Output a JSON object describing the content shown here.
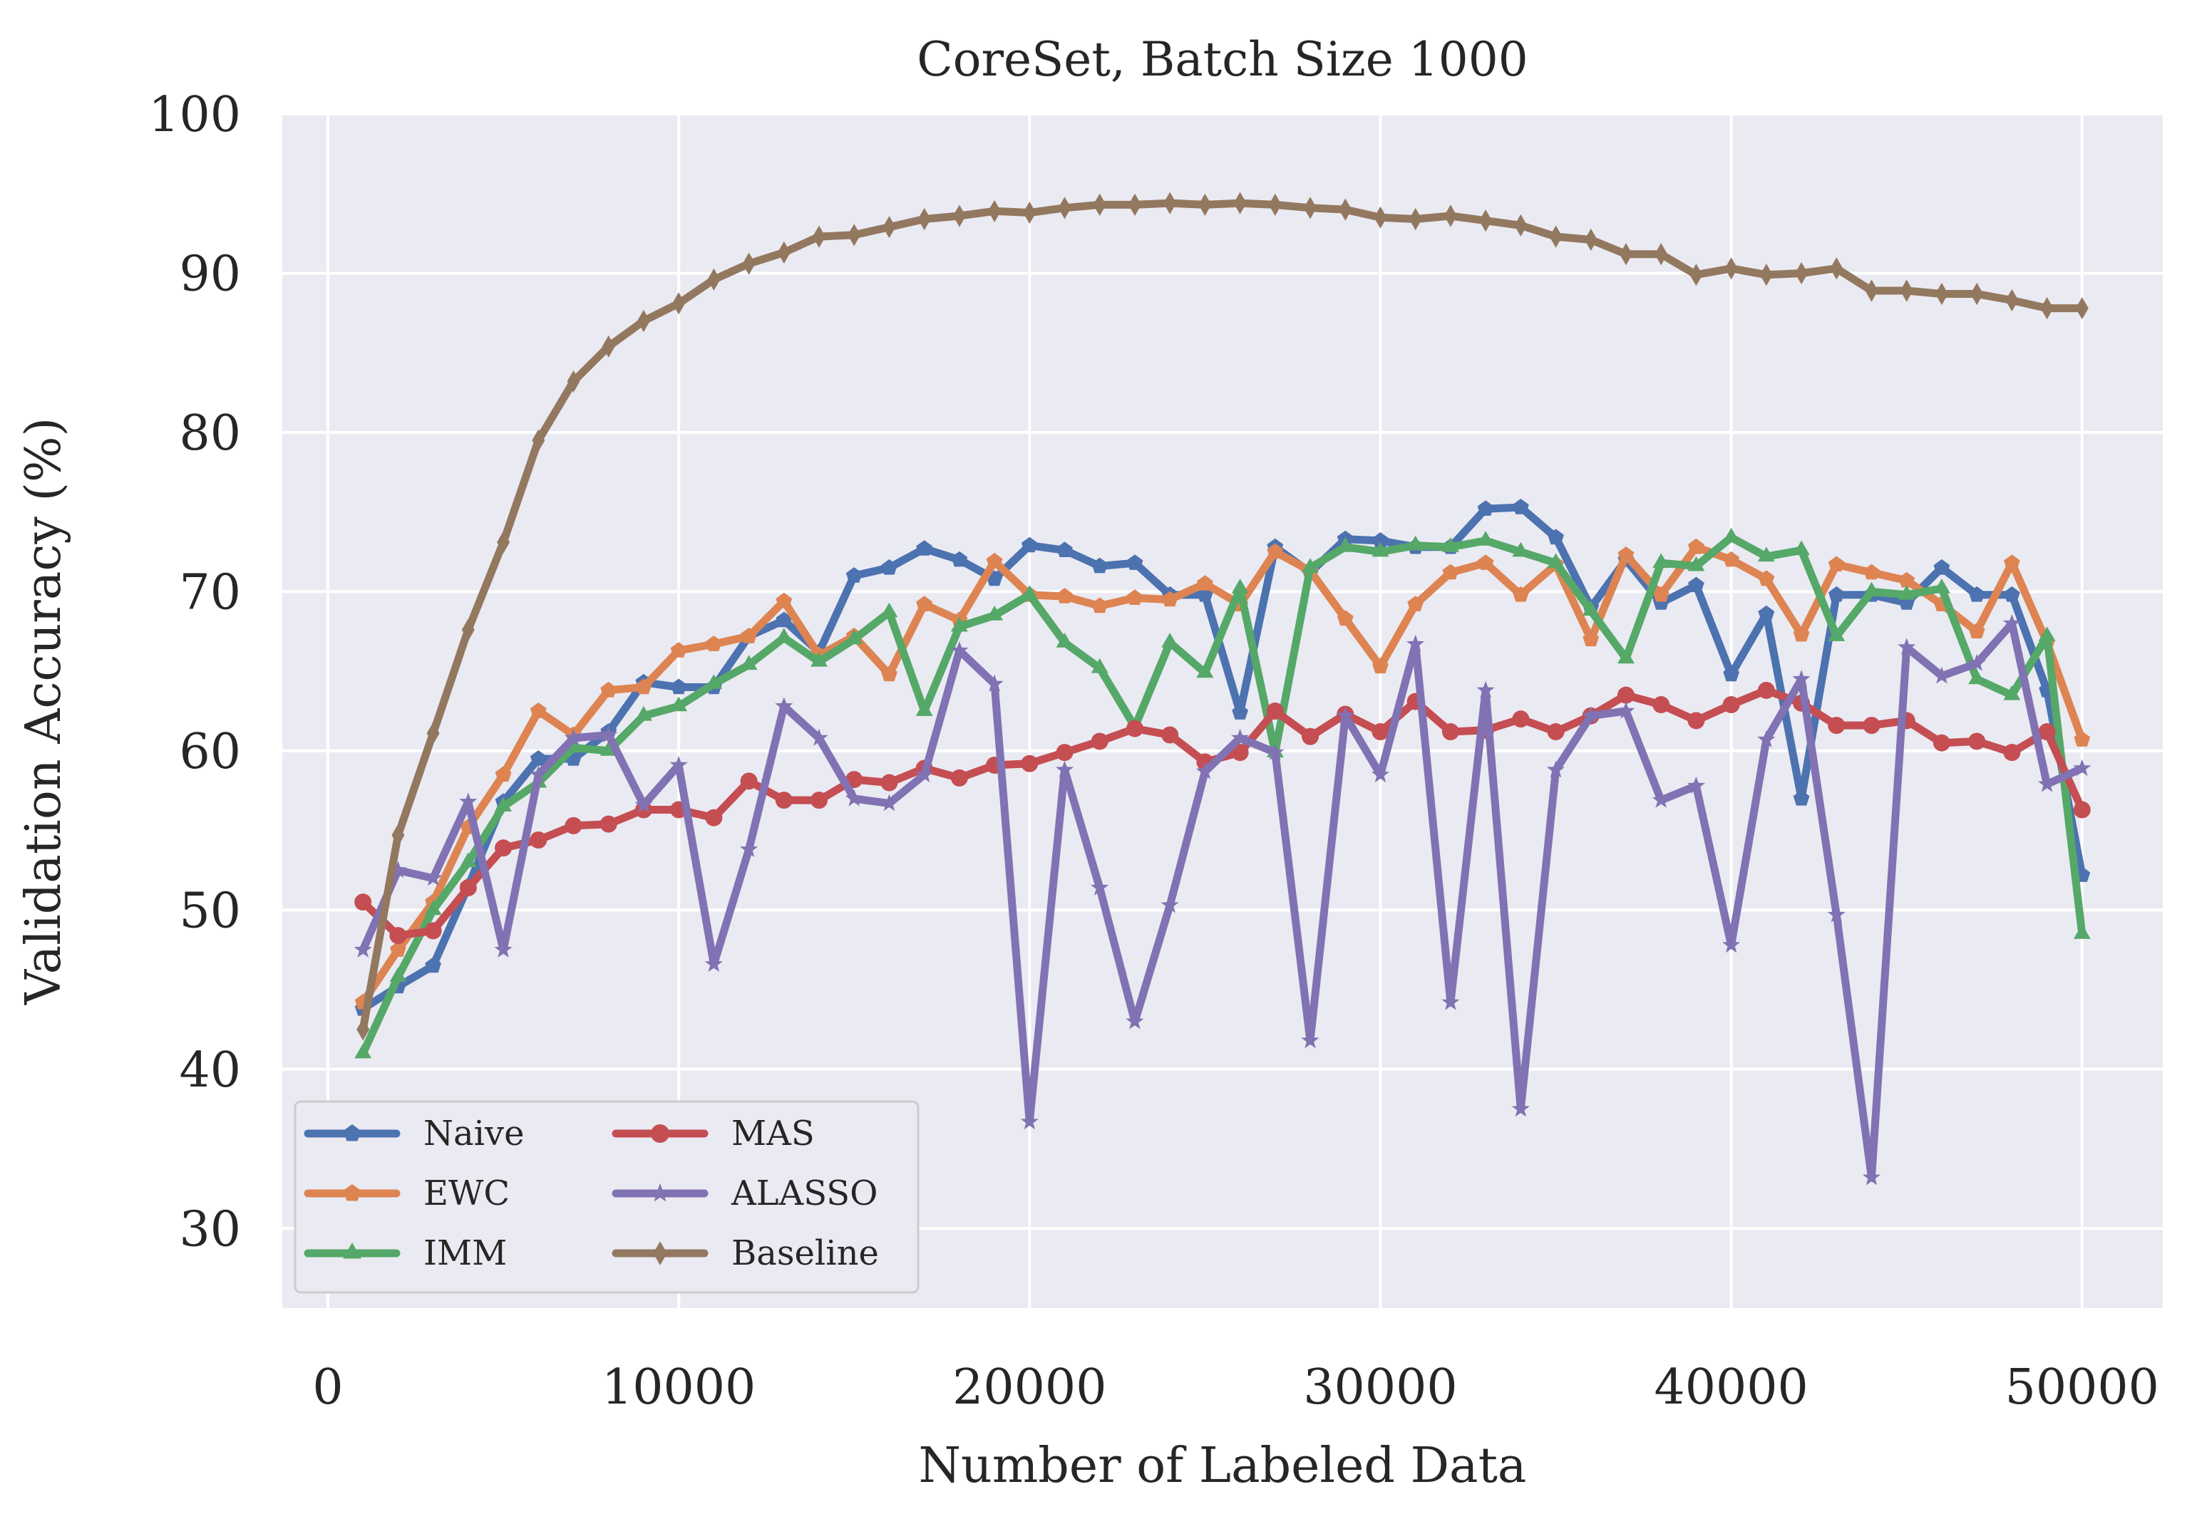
{
  "chart_data": {
    "type": "line",
    "title": "CoreSet, Batch Size 1000",
    "xlabel": "Number of Labeled Data",
    "ylabel": "Validation Accuracy (%)",
    "xlim": [
      -1300,
      52300
    ],
    "ylim": [
      25,
      100
    ],
    "xticks": [
      0,
      10000,
      20000,
      30000,
      40000,
      50000
    ],
    "yticks": [
      30,
      40,
      50,
      60,
      70,
      80,
      90,
      100
    ],
    "grid": true,
    "legend_position": "lower-left",
    "legend_columns": 2,
    "x": [
      1000,
      2000,
      3000,
      4000,
      5000,
      6000,
      7000,
      8000,
      9000,
      10000,
      11000,
      12000,
      13000,
      14000,
      15000,
      16000,
      17000,
      18000,
      19000,
      20000,
      21000,
      22000,
      23000,
      24000,
      25000,
      26000,
      27000,
      28000,
      29000,
      30000,
      31000,
      32000,
      33000,
      34000,
      35000,
      36000,
      37000,
      38000,
      39000,
      40000,
      41000,
      42000,
      43000,
      44000,
      45000,
      46000,
      47000,
      48000,
      49000,
      50000
    ],
    "series": [
      {
        "name": "Naive",
        "color": "#4c72b0",
        "marker": "pentagon",
        "values": [
          43.8,
          45.2,
          46.5,
          51.5,
          56.8,
          59.5,
          59.5,
          61.2,
          64.3,
          64.0,
          64.0,
          67.2,
          68.2,
          66.2,
          71.0,
          71.5,
          72.7,
          72.0,
          70.8,
          72.9,
          72.6,
          71.6,
          71.8,
          69.8,
          69.8,
          62.4,
          72.8,
          71.2,
          73.3,
          73.2,
          72.8,
          72.8,
          75.2,
          75.3,
          73.4,
          69.0,
          72.0,
          69.3,
          70.4,
          64.8,
          68.6,
          57.0,
          69.8,
          69.8,
          69.3,
          71.5,
          69.8,
          69.8,
          63.8,
          52.2
        ]
      },
      {
        "name": "EWC",
        "color": "#dd8452",
        "marker": "pentagon",
        "values": [
          44.2,
          47.5,
          50.5,
          55.2,
          58.5,
          62.5,
          61.0,
          63.8,
          64.0,
          66.3,
          66.7,
          67.2,
          69.4,
          66.0,
          67.2,
          64.8,
          69.2,
          68.2,
          71.9,
          69.8,
          69.7,
          69.1,
          69.6,
          69.5,
          70.5,
          69.2,
          72.5,
          71.3,
          68.3,
          65.3,
          69.2,
          71.2,
          71.8,
          69.8,
          71.7,
          67.0,
          72.3,
          69.8,
          72.8,
          72.0,
          70.8,
          67.3,
          71.7,
          71.2,
          70.7,
          69.2,
          67.5,
          71.8,
          66.8,
          60.7
        ]
      },
      {
        "name": "IMM",
        "color": "#55a868",
        "marker": "triangle",
        "values": [
          41.0,
          45.8,
          50.0,
          53.0,
          56.5,
          58.0,
          60.2,
          60.0,
          62.2,
          62.8,
          64.2,
          65.4,
          67.1,
          65.6,
          67.0,
          68.7,
          62.5,
          67.8,
          68.5,
          69.8,
          66.8,
          65.2,
          61.5,
          66.8,
          64.9,
          70.2,
          59.9,
          71.5,
          72.8,
          72.5,
          72.9,
          72.8,
          73.2,
          72.5,
          71.8,
          68.8,
          65.8,
          71.8,
          71.6,
          73.4,
          72.2,
          72.6,
          67.2,
          70.0,
          69.8,
          70.2,
          64.5,
          63.5,
          67.2,
          48.5
        ]
      },
      {
        "name": "MAS",
        "color": "#c44e52",
        "marker": "circle",
        "values": [
          50.5,
          48.4,
          48.7,
          51.4,
          53.9,
          54.4,
          55.3,
          55.4,
          56.3,
          56.3,
          55.8,
          58.1,
          56.9,
          56.9,
          58.2,
          58.0,
          58.9,
          58.3,
          59.1,
          59.2,
          59.9,
          60.6,
          61.4,
          61.0,
          59.3,
          59.9,
          62.5,
          60.9,
          62.3,
          61.2,
          63.1,
          61.2,
          61.3,
          62.0,
          61.2,
          62.2,
          63.5,
          62.9,
          61.9,
          62.9,
          63.8,
          63.0,
          61.6,
          61.6,
          61.9,
          60.5,
          60.6,
          59.9,
          61.2,
          56.3
        ]
      },
      {
        "name": "ALASSO",
        "color": "#8172b3",
        "marker": "star",
        "values": [
          47.5,
          52.5,
          52.0,
          56.8,
          47.5,
          58.5,
          60.8,
          61.0,
          56.6,
          59.1,
          46.6,
          53.8,
          62.8,
          60.8,
          57.0,
          56.7,
          58.5,
          66.3,
          64.2,
          36.7,
          58.8,
          51.4,
          43.0,
          50.3,
          58.7,
          60.8,
          59.9,
          41.8,
          62.2,
          58.5,
          66.7,
          44.2,
          63.8,
          37.5,
          58.8,
          62.2,
          62.5,
          56.9,
          57.8,
          47.8,
          60.7,
          64.5,
          49.7,
          33.2,
          66.5,
          64.7,
          65.5,
          68.0,
          57.9,
          58.9
        ]
      },
      {
        "name": "Baseline",
        "color": "#937860",
        "marker": "diamond",
        "values": [
          42.5,
          54.7,
          61.1,
          67.6,
          73.1,
          79.5,
          83.2,
          85.4,
          87.0,
          88.1,
          89.6,
          90.6,
          91.3,
          92.3,
          92.4,
          92.9,
          93.4,
          93.6,
          93.9,
          93.8,
          94.1,
          94.3,
          94.3,
          94.4,
          94.3,
          94.4,
          94.3,
          94.1,
          94.0,
          93.5,
          93.4,
          93.6,
          93.3,
          93.0,
          92.3,
          92.1,
          91.2,
          91.2,
          89.9,
          90.3,
          89.9,
          90.0,
          90.3,
          88.9,
          88.9,
          88.7,
          88.7,
          88.3,
          87.8,
          87.8
        ]
      }
    ]
  }
}
